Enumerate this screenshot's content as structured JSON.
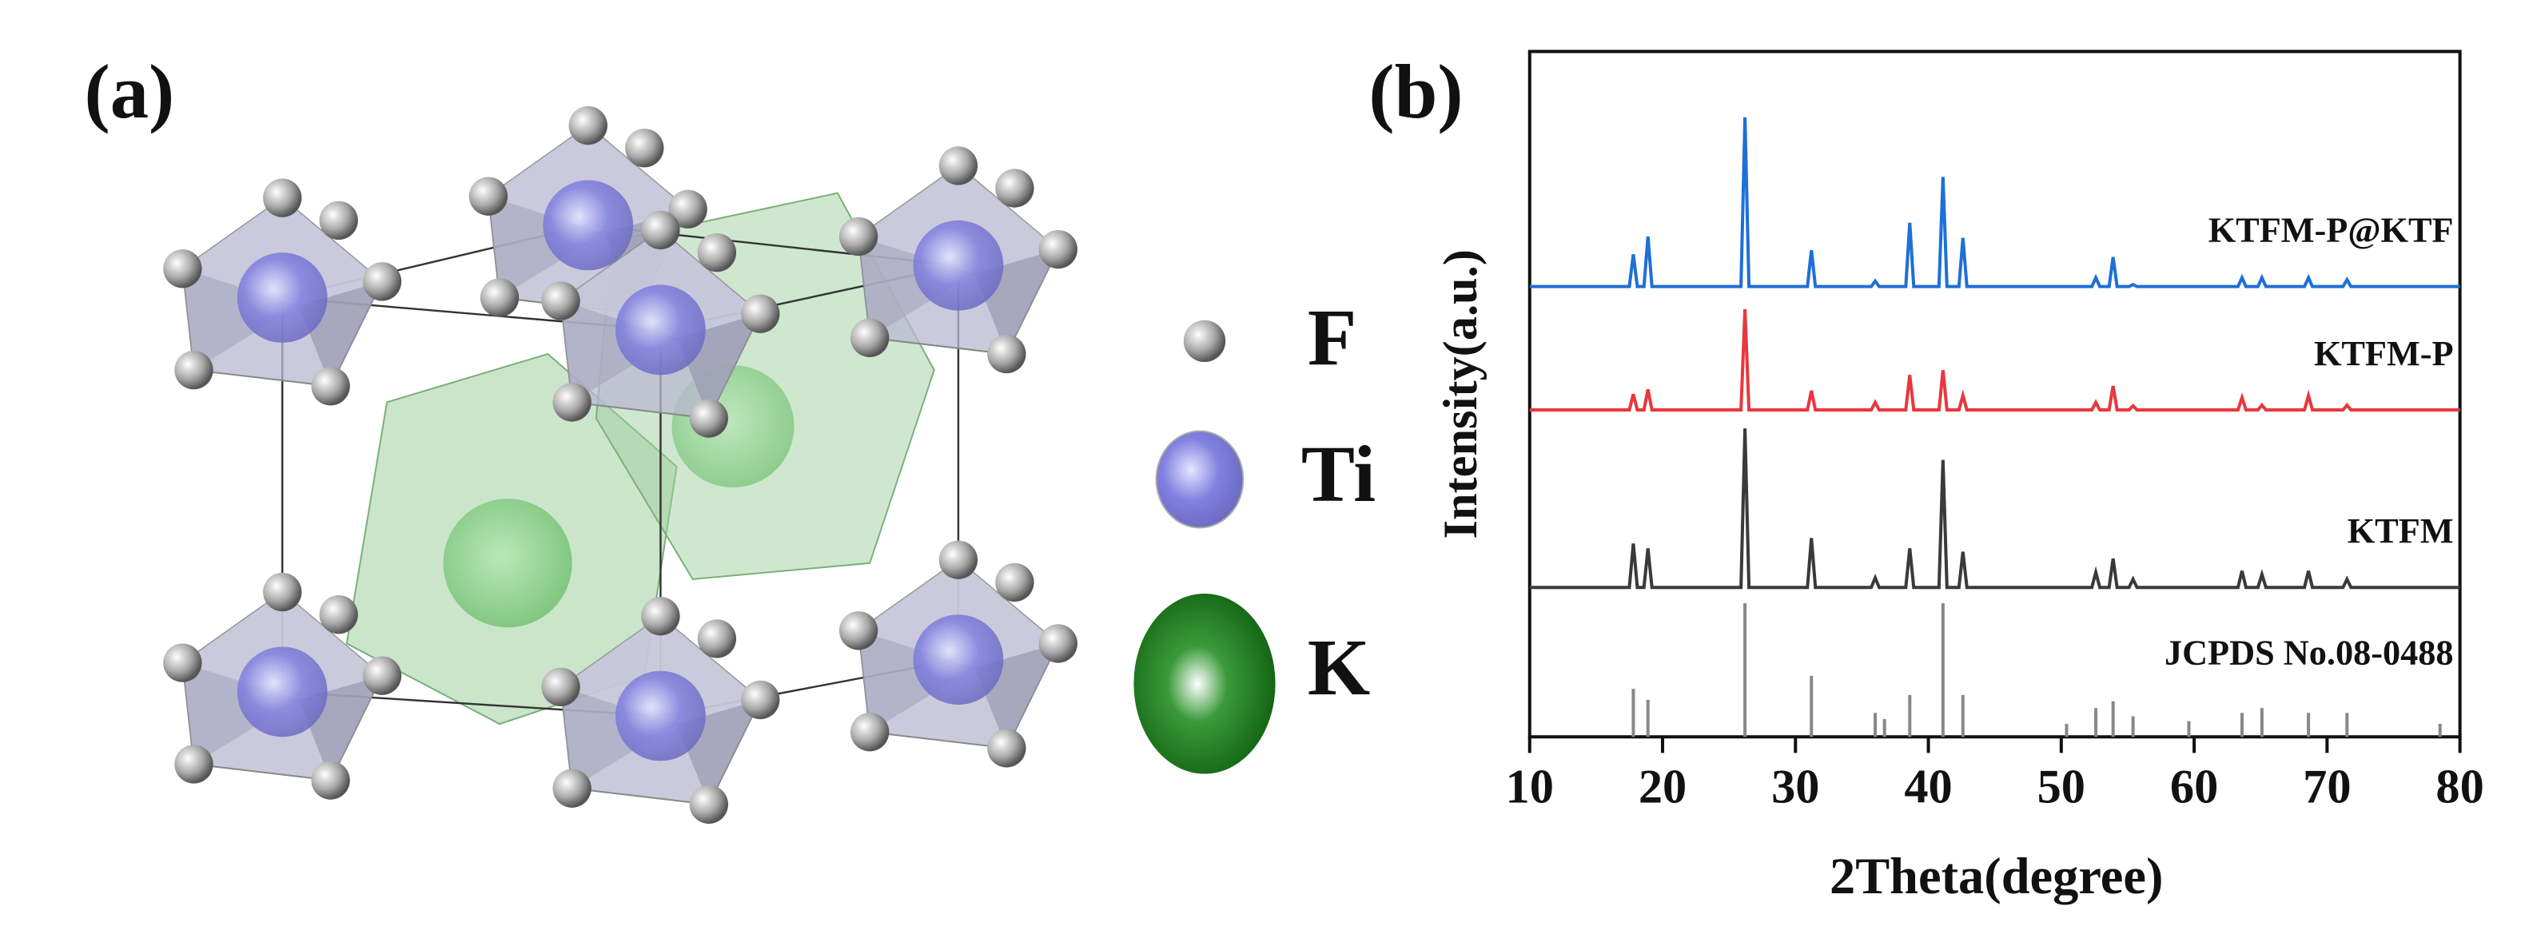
{
  "panel_labels": [
    "(a)",
    "(b)"
  ],
  "structure_legend": [
    "F",
    "Ti",
    "K"
  ],
  "chart_data": {
    "type": "line",
    "xlabel": "2Theta(degree)",
    "ylabel": "Intensity(a.u.)",
    "xlim": [
      10,
      80
    ],
    "xticks": [
      10,
      20,
      30,
      40,
      50,
      60,
      70,
      80
    ],
    "ylim": [
      0,
      100
    ],
    "x": [
      10,
      17.5,
      17.8,
      18.1,
      18.6,
      18.9,
      19.2,
      25.9,
      26.2,
      26.5,
      30.9,
      31.2,
      31.5,
      35.7,
      36.0,
      36.3,
      38.3,
      38.6,
      38.9,
      40.8,
      41.1,
      41.4,
      42.3,
      42.6,
      42.9,
      52.3,
      52.6,
      52.9,
      53.6,
      53.9,
      54.2,
      55.1,
      55.4,
      55.7,
      63.3,
      63.6,
      63.9,
      64.8,
      65.1,
      65.4,
      68.3,
      68.6,
      68.9,
      71.2,
      71.5,
      71.8,
      80
    ],
    "series": [
      {
        "name": "KTFM-P@KTF",
        "color": "#1f6fd6",
        "values": [
          65.7,
          65.7,
          70.4,
          65.7,
          65.7,
          73,
          65.7,
          65.7,
          90.4,
          65.7,
          65.7,
          71,
          65.7,
          65.7,
          66.5,
          65.7,
          65.7,
          75,
          65.7,
          65.7,
          81.7,
          65.7,
          65.7,
          72.8,
          65.7,
          65.7,
          67,
          65.7,
          65.7,
          70,
          65.7,
          65.7,
          66,
          65.7,
          65.7,
          67,
          65.7,
          65.7,
          67,
          65.7,
          65.7,
          67,
          65.7,
          65.7,
          66.7,
          65.7,
          65.7
        ]
      },
      {
        "name": "KTFM-P",
        "color": "#e8383d",
        "values": [
          47.7,
          47.7,
          50,
          47.7,
          47.7,
          50.7,
          47.7,
          47.7,
          62.4,
          47.7,
          47.7,
          50.5,
          47.7,
          47.7,
          48.8,
          47.7,
          47.7,
          52.8,
          47.7,
          47.7,
          53.5,
          47.7,
          47.7,
          49.8,
          47.7,
          47.7,
          48.8,
          47.7,
          47.7,
          51.2,
          47.7,
          47.7,
          48.3,
          47.7,
          47.7,
          49.5,
          47.7,
          47.7,
          48.4,
          47.7,
          47.7,
          49.8,
          47.7,
          47.7,
          48.4,
          47.7,
          47.7
        ]
      },
      {
        "name": "KTFM",
        "color": "#3a3a3a",
        "values": [
          21.8,
          21.8,
          28.2,
          21.8,
          21.8,
          27.5,
          21.8,
          21.8,
          45,
          21.8,
          21.8,
          29,
          21.8,
          21.8,
          23.2,
          21.8,
          21.8,
          27.5,
          21.8,
          21.8,
          40.4,
          21.8,
          21.8,
          27,
          21.8,
          21.8,
          24,
          21.8,
          21.8,
          26,
          21.8,
          21.8,
          23,
          21.8,
          21.8,
          24.2,
          21.8,
          21.8,
          23.7,
          21.8,
          21.8,
          24.2,
          21.8,
          21.8,
          23,
          21.8,
          21.8
        ]
      }
    ],
    "reference": {
      "name": "JCPDS No.08-0488",
      "color": "#888888",
      "x": [
        17.8,
        18.9,
        26.2,
        31.2,
        36.0,
        36.7,
        38.6,
        41.1,
        42.6,
        50.4,
        52.6,
        53.9,
        55.4,
        59.6,
        63.6,
        65.1,
        68.6,
        71.5,
        78.5
      ],
      "values": [
        7,
        5.4,
        19.5,
        8.9,
        3.5,
        2.6,
        6.1,
        19.5,
        6.1,
        1.9,
        4.2,
        5.2,
        3,
        2.3,
        3.5,
        4.2,
        3.5,
        3.5,
        1.9
      ]
    }
  }
}
